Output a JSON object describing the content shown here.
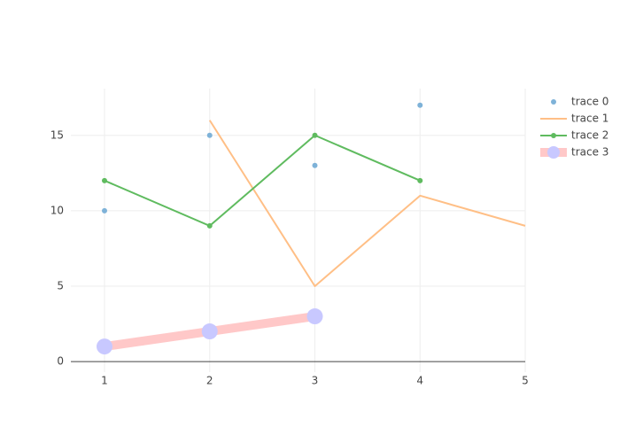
{
  "chart_data": {
    "type": "line",
    "xlim": [
      0.68,
      5
    ],
    "ylim": [
      -0.7,
      18.1
    ],
    "xticks": [
      1,
      2,
      3,
      4,
      5
    ],
    "yticks": [
      0,
      5,
      10,
      15
    ],
    "grid": true,
    "legend": "right",
    "series": [
      {
        "name": "trace 0",
        "mode": "markers",
        "color": "#7eb2d8",
        "x": [
          1,
          2,
          3,
          4
        ],
        "values": [
          10,
          15,
          13,
          17
        ],
        "marker_size": 6,
        "line_width": 0
      },
      {
        "name": "trace 1",
        "mode": "lines",
        "color": "#ffbf86",
        "x": [
          2,
          3,
          4,
          5
        ],
        "values": [
          16,
          5,
          11,
          9
        ],
        "marker_size": 0,
        "line_width": 2
      },
      {
        "name": "trace 2",
        "mode": "lines+markers",
        "color": "#5fbb5f",
        "x": [
          1,
          2,
          3,
          4
        ],
        "values": [
          12,
          9,
          15,
          12
        ],
        "marker_size": 6,
        "line_width": 2
      },
      {
        "name": "trace 3",
        "mode": "lines+markers",
        "color": "#ffc8c8",
        "marker_color": "#c8c8ff",
        "x": [
          1,
          2,
          3
        ],
        "values": [
          1,
          2,
          3
        ],
        "marker_size": 18,
        "line_width": 10
      }
    ]
  }
}
